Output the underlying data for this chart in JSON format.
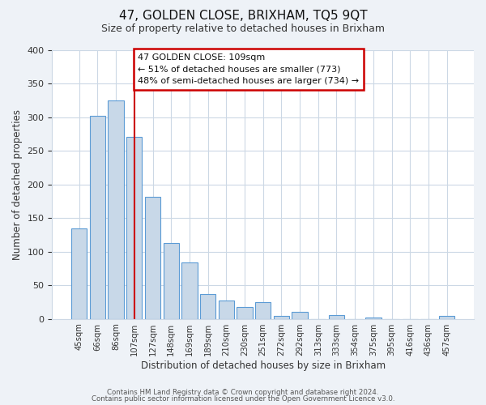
{
  "title": "47, GOLDEN CLOSE, BRIXHAM, TQ5 9QT",
  "subtitle": "Size of property relative to detached houses in Brixham",
  "xlabel": "Distribution of detached houses by size in Brixham",
  "ylabel": "Number of detached properties",
  "categories": [
    "45sqm",
    "66sqm",
    "86sqm",
    "107sqm",
    "127sqm",
    "148sqm",
    "169sqm",
    "189sqm",
    "210sqm",
    "230sqm",
    "251sqm",
    "272sqm",
    "292sqm",
    "313sqm",
    "333sqm",
    "354sqm",
    "375sqm",
    "395sqm",
    "416sqm",
    "436sqm",
    "457sqm"
  ],
  "values": [
    135,
    302,
    325,
    271,
    182,
    113,
    84,
    37,
    27,
    18,
    25,
    5,
    11,
    0,
    6,
    0,
    2,
    0,
    0,
    0,
    5
  ],
  "bar_color": "#c8d8e8",
  "bar_edge_color": "#5b9bd5",
  "highlight_bar_index": 3,
  "annotation_title": "47 GOLDEN CLOSE: 109sqm",
  "annotation_line1": "← 51% of detached houses are smaller (773)",
  "annotation_line2": "48% of semi-detached houses are larger (734) →",
  "annotation_box_color": "#ffffff",
  "annotation_box_edge_color": "#cc0000",
  "vline_color": "#cc0000",
  "ylim": [
    0,
    400
  ],
  "yticks": [
    0,
    50,
    100,
    150,
    200,
    250,
    300,
    350,
    400
  ],
  "footer1": "Contains HM Land Registry data © Crown copyright and database right 2024.",
  "footer2": "Contains public sector information licensed under the Open Government Licence v3.0.",
  "bg_color": "#eef2f7",
  "plot_bg_color": "#ffffff",
  "grid_color": "#ccd8e5"
}
